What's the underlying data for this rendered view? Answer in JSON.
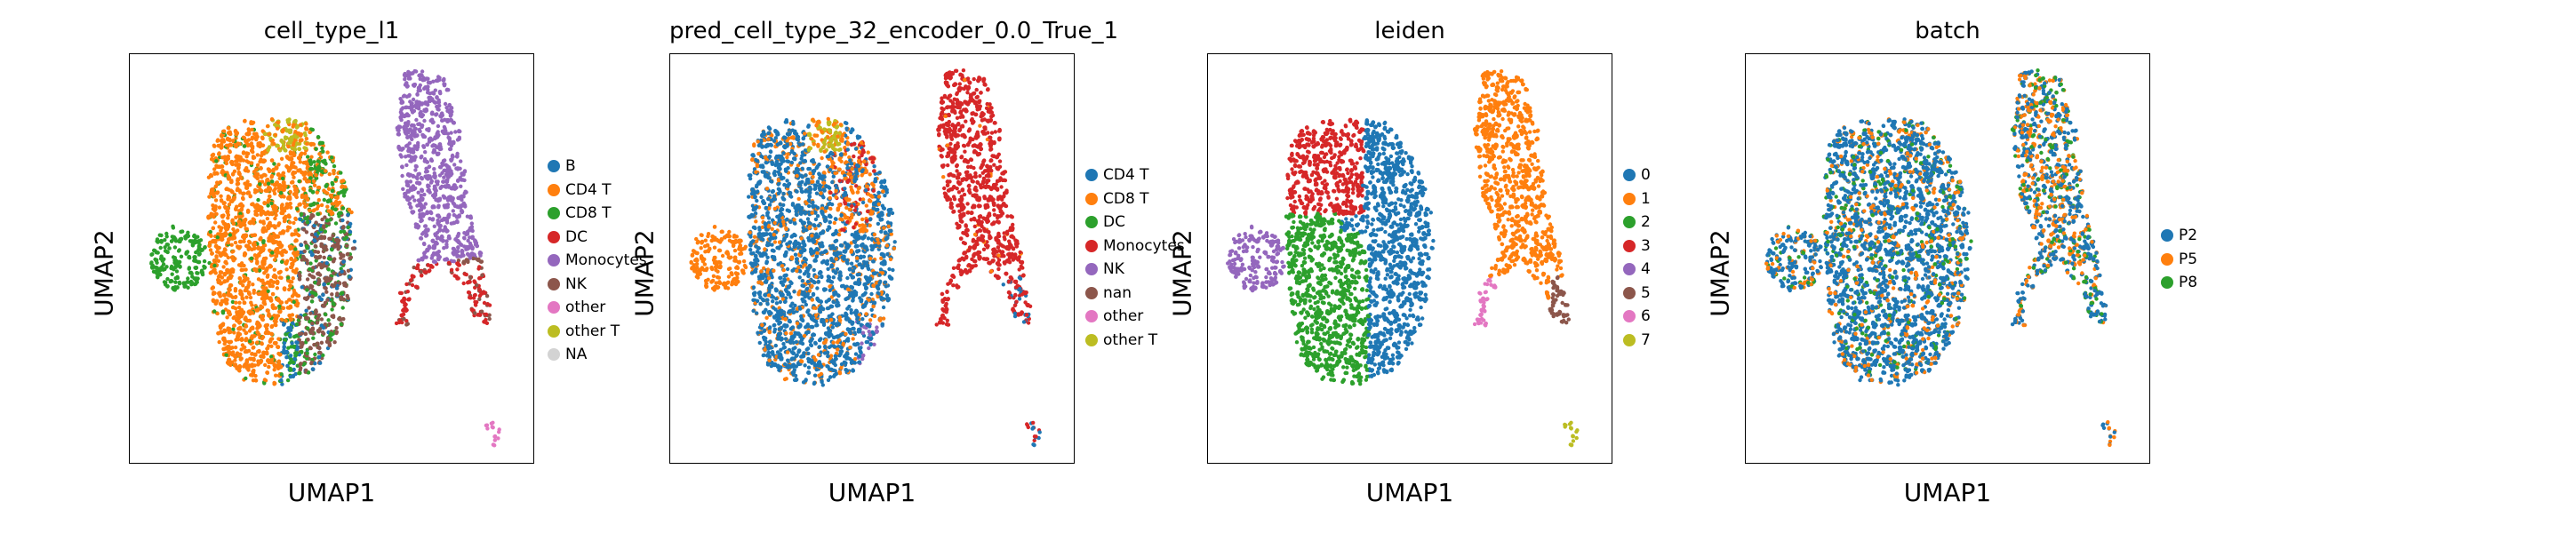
{
  "panels": [
    {
      "title": "cell_type_l1",
      "xlabel": "UMAP1",
      "ylabel": "UMAP2",
      "legend": [
        {
          "label": "B",
          "color": "#1f77b4"
        },
        {
          "label": "CD4 T",
          "color": "#ff7f0e"
        },
        {
          "label": "CD8 T",
          "color": "#2ca02c"
        },
        {
          "label": "DC",
          "color": "#d62728"
        },
        {
          "label": "Monocytes",
          "color": "#9467bd"
        },
        {
          "label": "NK",
          "color": "#8c564b"
        },
        {
          "label": "other",
          "color": "#e377c2"
        },
        {
          "label": "other T",
          "color": "#bcbd22"
        },
        {
          "label": "NA",
          "color": "#d3d3d3"
        }
      ]
    },
    {
      "title": "pred_cell_type_32_encoder_0.0_True_1",
      "xlabel": "UMAP1",
      "ylabel": "UMAP2",
      "legend": [
        {
          "label": "CD4 T",
          "color": "#1f77b4"
        },
        {
          "label": "CD8 T",
          "color": "#ff7f0e"
        },
        {
          "label": "DC",
          "color": "#2ca02c"
        },
        {
          "label": "Monocytes",
          "color": "#d62728"
        },
        {
          "label": "NK",
          "color": "#9467bd"
        },
        {
          "label": "nan",
          "color": "#8c564b"
        },
        {
          "label": "other",
          "color": "#e377c2"
        },
        {
          "label": "other T",
          "color": "#bcbd22"
        }
      ]
    },
    {
      "title": "leiden",
      "xlabel": "UMAP1",
      "ylabel": "UMAP2",
      "legend": [
        {
          "label": "0",
          "color": "#1f77b4"
        },
        {
          "label": "1",
          "color": "#ff7f0e"
        },
        {
          "label": "2",
          "color": "#2ca02c"
        },
        {
          "label": "3",
          "color": "#d62728"
        },
        {
          "label": "4",
          "color": "#9467bd"
        },
        {
          "label": "5",
          "color": "#8c564b"
        },
        {
          "label": "6",
          "color": "#e377c2"
        },
        {
          "label": "7",
          "color": "#bcbd22"
        }
      ]
    },
    {
      "title": "batch",
      "xlabel": "UMAP1",
      "ylabel": "UMAP2",
      "legend": [
        {
          "label": "P2",
          "color": "#1f77b4"
        },
        {
          "label": "P5",
          "color": "#ff7f0e"
        },
        {
          "label": "P8",
          "color": "#2ca02c"
        }
      ]
    }
  ],
  "chart_data": [
    {
      "type": "scatter",
      "title": "cell_type_l1",
      "xlabel": "UMAP1",
      "ylabel": "UMAP2",
      "series": [
        {
          "name": "B"
        },
        {
          "name": "CD4 T"
        },
        {
          "name": "CD8 T"
        },
        {
          "name": "DC"
        },
        {
          "name": "Monocytes"
        },
        {
          "name": "NK"
        },
        {
          "name": "other"
        },
        {
          "name": "other T"
        },
        {
          "name": "NA"
        }
      ],
      "grid": false,
      "ticks": false,
      "legend_position": "right"
    },
    {
      "type": "scatter",
      "title": "pred_cell_type_32_encoder_0.0_True_1",
      "xlabel": "UMAP1",
      "ylabel": "UMAP2",
      "series": [
        {
          "name": "CD4 T"
        },
        {
          "name": "CD8 T"
        },
        {
          "name": "DC"
        },
        {
          "name": "Monocytes"
        },
        {
          "name": "NK"
        },
        {
          "name": "nan"
        },
        {
          "name": "other"
        },
        {
          "name": "other T"
        }
      ],
      "grid": false,
      "ticks": false,
      "legend_position": "right"
    },
    {
      "type": "scatter",
      "title": "leiden",
      "xlabel": "UMAP1",
      "ylabel": "UMAP2",
      "series": [
        {
          "name": "0"
        },
        {
          "name": "1"
        },
        {
          "name": "2"
        },
        {
          "name": "3"
        },
        {
          "name": "4"
        },
        {
          "name": "5"
        },
        {
          "name": "6"
        },
        {
          "name": "7"
        }
      ],
      "grid": false,
      "ticks": false,
      "legend_position": "right"
    },
    {
      "type": "scatter",
      "title": "batch",
      "xlabel": "UMAP1",
      "ylabel": "UMAP2",
      "series": [
        {
          "name": "P2"
        },
        {
          "name": "P5"
        },
        {
          "name": "P8"
        }
      ],
      "grid": false,
      "ticks": false,
      "legend_position": "right"
    }
  ]
}
